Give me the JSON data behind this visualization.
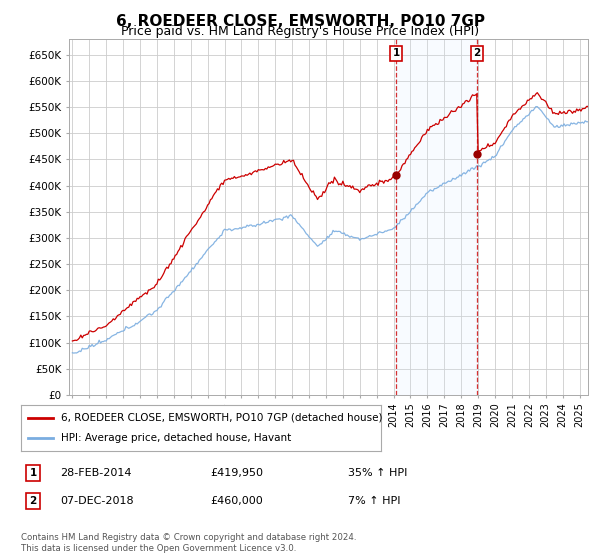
{
  "title": "6, ROEDEER CLOSE, EMSWORTH, PO10 7GP",
  "subtitle": "Price paid vs. HM Land Registry's House Price Index (HPI)",
  "ylabel_ticks": [
    "£0",
    "£50K",
    "£100K",
    "£150K",
    "£200K",
    "£250K",
    "£300K",
    "£350K",
    "£400K",
    "£450K",
    "£500K",
    "£550K",
    "£600K",
    "£650K"
  ],
  "ytick_vals": [
    0,
    50000,
    100000,
    150000,
    200000,
    250000,
    300000,
    350000,
    400000,
    450000,
    500000,
    550000,
    600000,
    650000
  ],
  "ylim": [
    0,
    680000
  ],
  "xlim_start": 1994.8,
  "xlim_end": 2025.5,
  "legend_line1": "6, ROEDEER CLOSE, EMSWORTH, PO10 7GP (detached house)",
  "legend_line2": "HPI: Average price, detached house, Havant",
  "marker1_date": "28-FEB-2014",
  "marker1_price": "£419,950",
  "marker1_hpi": "35% ↑ HPI",
  "marker1_x": 2014.15,
  "marker1_y": 419950,
  "marker2_date": "07-DEC-2018",
  "marker2_price": "£460,000",
  "marker2_hpi": "7% ↑ HPI",
  "marker2_x": 2018.92,
  "marker2_y": 460000,
  "footnote": "Contains HM Land Registry data © Crown copyright and database right 2024.\nThis data is licensed under the Open Government Licence v3.0.",
  "line_color_red": "#cc0000",
  "line_color_blue": "#7aade0",
  "shade_color": "#ddeeff",
  "bg_color": "#ffffff",
  "grid_color": "#cccccc",
  "title_fontsize": 11,
  "subtitle_fontsize": 9
}
